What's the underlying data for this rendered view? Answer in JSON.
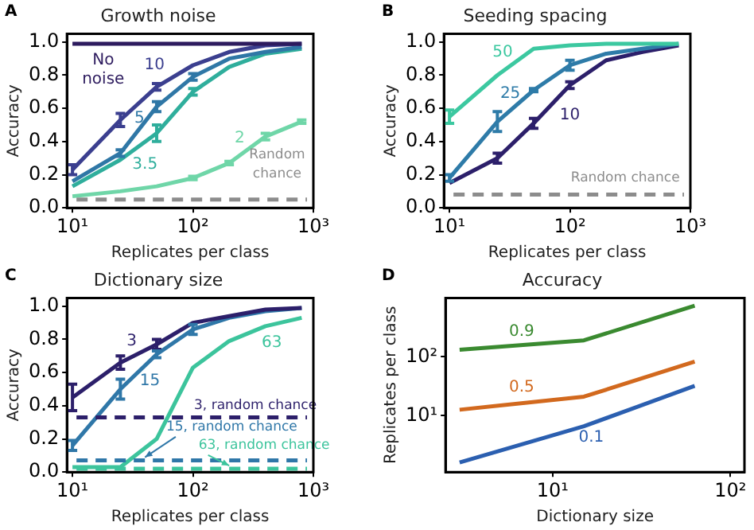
{
  "chart_data": [
    {
      "type": "line",
      "title": "Growth noise",
      "xlabel": "Replicates per class",
      "ylabel": "Accuracy",
      "annotations": [
        "A"
      ],
      "log": "x",
      "legend": false,
      "grid": false,
      "marker": "none",
      "xlim": [
        9,
        1000
      ],
      "xticks": [
        {
          "value": 10,
          "label": "10¹"
        },
        {
          "value": 100,
          "label": "10²"
        },
        {
          "value": 1000,
          "label": "10³"
        }
      ],
      "ylim": [
        0,
        1.05
      ],
      "yticks": [
        {
          "value": 0,
          "label": "0.0"
        },
        {
          "value": 0.2,
          "label": "0.2"
        },
        {
          "value": 0.4,
          "label": "0.4"
        },
        {
          "value": 0.6,
          "label": "0.6"
        },
        {
          "value": 0.8,
          "label": "0.8"
        },
        {
          "value": 1,
          "label": "1.0"
        }
      ],
      "x": [
        10,
        25,
        50,
        100,
        200,
        400,
        800
      ],
      "series": [
        {
          "name": "No noise",
          "color": "#2d1b5e",
          "values": [
            0.99,
            0.99,
            0.99,
            0.99,
            0.99,
            0.99,
            0.99
          ]
        },
        {
          "name": "10",
          "color": "#3b3f8f",
          "values": [
            0.23,
            0.53,
            0.73,
            0.86,
            0.94,
            0.98,
            0.99
          ],
          "errors": [
            0.03,
            0.04,
            0.02,
            null,
            null,
            null,
            null
          ]
        },
        {
          "name": "5",
          "color": "#2f77a6",
          "values": [
            0.16,
            0.33,
            0.61,
            0.79,
            0.9,
            0.94,
            0.97
          ],
          "errors": [
            null,
            0.02,
            0.03,
            0.02,
            null,
            null,
            null
          ]
        },
        {
          "name": "3.5",
          "color": "#2fae9c",
          "values": [
            0.13,
            0.29,
            0.45,
            0.7,
            0.85,
            0.93,
            0.96
          ],
          "errors": [
            null,
            null,
            0.05,
            0.02,
            null,
            null,
            null
          ]
        },
        {
          "name": "2",
          "color": "#6fd6a8",
          "values": [
            0.07,
            0.1,
            0.13,
            0.18,
            0.27,
            0.43,
            0.52
          ],
          "errors": [
            null,
            null,
            null,
            0.01,
            0.01,
            0.02,
            0.01
          ]
        }
      ],
      "ref_lines": [
        {
          "axis": "y",
          "value": 0.05,
          "label": "Random chance",
          "color": "#8c8c8c",
          "line_style": "dashed"
        }
      ]
    },
    {
      "type": "line",
      "title": "Seeding spacing",
      "xlabel": "Replicates per class",
      "ylabel": "Accuracy",
      "annotations": [
        "B"
      ],
      "log": "x",
      "legend": false,
      "grid": false,
      "marker": "none",
      "xlim": [
        9,
        1000
      ],
      "xticks": [
        {
          "value": 10,
          "label": "10¹"
        },
        {
          "value": 100,
          "label": "10²"
        },
        {
          "value": 1000,
          "label": "10³"
        }
      ],
      "ylim": [
        0,
        1.05
      ],
      "yticks": [
        {
          "value": 0,
          "label": "0.0"
        },
        {
          "value": 0.2,
          "label": "0.2"
        },
        {
          "value": 0.4,
          "label": "0.4"
        },
        {
          "value": 0.6,
          "label": "0.6"
        },
        {
          "value": 0.8,
          "label": "0.8"
        },
        {
          "value": 1,
          "label": "1.0"
        }
      ],
      "x": [
        10,
        25,
        50,
        100,
        200,
        400,
        800
      ],
      "series": [
        {
          "name": "50",
          "color": "#3cc8a0",
          "values": [
            0.55,
            0.8,
            0.96,
            0.98,
            0.99,
            0.99,
            0.99
          ],
          "errors": [
            0.04,
            null,
            null,
            null,
            null,
            null,
            null
          ]
        },
        {
          "name": "25",
          "color": "#2e7ba8",
          "values": [
            0.18,
            0.52,
            0.71,
            0.86,
            0.93,
            0.96,
            0.99
          ],
          "errors": [
            0.02,
            0.06,
            0.01,
            0.03,
            null,
            null,
            null
          ]
        },
        {
          "name": "10",
          "color": "#2c1f6a",
          "values": [
            0.15,
            0.3,
            0.51,
            0.74,
            0.89,
            0.94,
            0.98
          ],
          "errors": [
            null,
            0.03,
            0.03,
            0.02,
            null,
            null,
            null
          ]
        }
      ],
      "ref_lines": [
        {
          "axis": "y",
          "value": 0.08,
          "label": "Random chance",
          "color": "#8c8c8c",
          "line_style": "dashed"
        }
      ]
    },
    {
      "type": "line",
      "title": "Dictionary size",
      "xlabel": "Replicates per class",
      "ylabel": "Accuracy",
      "annotations": [
        "C"
      ],
      "log": "x",
      "legend": false,
      "grid": false,
      "marker": "none",
      "xlim": [
        9,
        1000
      ],
      "xticks": [
        {
          "value": 10,
          "label": "10¹"
        },
        {
          "value": 100,
          "label": "10²"
        },
        {
          "value": 1000,
          "label": "10³"
        }
      ],
      "ylim": [
        0,
        1.05
      ],
      "yticks": [
        {
          "value": 0,
          "label": "0.0"
        },
        {
          "value": 0.2,
          "label": "0.2"
        },
        {
          "value": 0.4,
          "label": "0.4"
        },
        {
          "value": 0.6,
          "label": "0.6"
        },
        {
          "value": 0.8,
          "label": "0.8"
        },
        {
          "value": 1,
          "label": "1.0"
        }
      ],
      "x": [
        10,
        25,
        50,
        100,
        200,
        400,
        800
      ],
      "series": [
        {
          "name": "3",
          "color": "#2c1f6a",
          "values": [
            0.45,
            0.66,
            0.77,
            0.9,
            0.94,
            0.98,
            0.99
          ],
          "errors": [
            0.08,
            0.04,
            0.03,
            null,
            null,
            null,
            null
          ]
        },
        {
          "name": "15",
          "color": "#2f77a8",
          "values": [
            0.16,
            0.5,
            0.71,
            0.86,
            0.93,
            0.97,
            0.99
          ],
          "errors": [
            0.03,
            0.06,
            0.02,
            0.03,
            null,
            null,
            null
          ]
        },
        {
          "name": "63",
          "color": "#3cc49c",
          "values": [
            0.03,
            0.03,
            0.2,
            0.63,
            0.79,
            0.88,
            0.93
          ]
        }
      ],
      "ref_lines": [
        {
          "axis": "y",
          "value": 0.33,
          "label": "3, random chance",
          "color": "#2c1f6a",
          "line_style": "dashed"
        },
        {
          "axis": "y",
          "value": 0.07,
          "label": "15, random chance",
          "color": "#2f77a8",
          "line_style": "dashed"
        },
        {
          "axis": "y",
          "value": 0.02,
          "label": "63, random chance",
          "color": "#3cc49c",
          "line_style": "dashed"
        }
      ]
    },
    {
      "type": "line",
      "title": "Accuracy",
      "xlabel": "Dictionary size",
      "ylabel": "Replicates per class",
      "annotations": [
        "D"
      ],
      "log": "xy",
      "legend": false,
      "grid": false,
      "marker": "none",
      "xlim": [
        2.5,
        120
      ],
      "xticks": [
        {
          "value": 10,
          "label": "10¹"
        },
        {
          "value": 100,
          "label": "10²"
        }
      ],
      "ylim": [
        1.1,
        1000
      ],
      "yticks": [
        {
          "value": 10,
          "label": "10¹"
        },
        {
          "value": 100,
          "label": "10²"
        }
      ],
      "x": [
        3,
        15,
        63
      ],
      "series": [
        {
          "name": "0.9",
          "color": "#3a8a30",
          "values": [
            132,
            190,
            740
          ]
        },
        {
          "name": "0.5",
          "color": "#d2691e",
          "values": [
            12.6,
            21,
            83
          ]
        },
        {
          "name": "0.1",
          "color": "#2b5fb0",
          "values": [
            1.6,
            6.6,
            32
          ]
        }
      ]
    }
  ]
}
